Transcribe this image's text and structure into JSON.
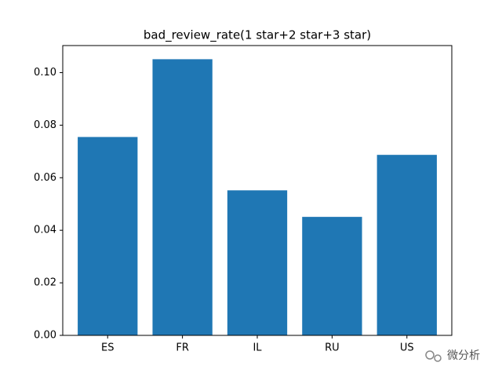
{
  "chart_data": {
    "type": "bar",
    "title": "bad_review_rate(1 star+2 star+3 star)",
    "categories": [
      "ES",
      "FR",
      "IL",
      "RU",
      "US"
    ],
    "values": [
      0.0755,
      0.1051,
      0.0552,
      0.0451,
      0.0687
    ],
    "color": "#1f77b4",
    "ylim": [
      0,
      0.1103
    ],
    "yticks": [
      {
        "value": 0,
        "label": "0.00"
      },
      {
        "value": 0.02,
        "label": "0.02"
      },
      {
        "value": 0.04,
        "label": "0.04"
      },
      {
        "value": 0.06,
        "label": "0.06"
      },
      {
        "value": 0.08,
        "label": "0.08"
      },
      {
        "value": 0.1,
        "label": "0.10"
      }
    ],
    "grid": false,
    "watermark": "微分析"
  }
}
